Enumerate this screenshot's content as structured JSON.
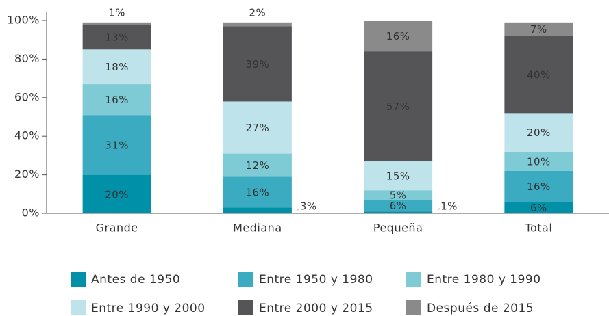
{
  "chart_data": {
    "type": "stacked_bar",
    "categories": [
      "Grande",
      "Mediana",
      "Pequeña",
      "Total"
    ],
    "series": [
      {
        "name": "Antes de 1950",
        "color": "#0090a8",
        "values": [
          20,
          3,
          1,
          6
        ],
        "value_labels": [
          "20%",
          "3%",
          "1%",
          "6%"
        ]
      },
      {
        "name": "Entre 1950 y 1980",
        "color": "#3aabc0",
        "values": [
          31,
          16,
          6,
          16
        ],
        "value_labels": [
          "31%",
          "16%",
          "6%",
          "16%"
        ]
      },
      {
        "name": "Entre 1980 y 1990",
        "color": "#7ecbd6",
        "values": [
          16,
          12,
          5,
          10
        ],
        "value_labels": [
          "16%",
          "12%",
          "5%",
          "10%"
        ]
      },
      {
        "name": "Entre 1990 y 2000",
        "color": "#bfe3ea",
        "values": [
          18,
          27,
          15,
          20
        ],
        "value_labels": [
          "18%",
          "27%",
          "15%",
          "20%"
        ]
      },
      {
        "name": "Entre 2000 y 2015",
        "color": "#555558",
        "values": [
          13,
          39,
          57,
          40
        ],
        "value_labels": [
          "13%",
          "39%",
          "57%",
          "40%"
        ]
      },
      {
        "name": "Después de 2015",
        "color": "#8a8a8a",
        "values": [
          1,
          2,
          16,
          7
        ],
        "value_labels": [
          "1%",
          "2%",
          "16%",
          "7%"
        ]
      }
    ],
    "ylim": [
      0,
      100
    ],
    "yticks": [
      {
        "value": 0,
        "label": "0%"
      },
      {
        "value": 20,
        "label": "20%"
      },
      {
        "value": 40,
        "label": "40%"
      },
      {
        "value": 60,
        "label": "60%"
      },
      {
        "value": 80,
        "label": "80%"
      },
      {
        "value": 100,
        "label": "100%"
      }
    ],
    "legend": "bottom"
  }
}
